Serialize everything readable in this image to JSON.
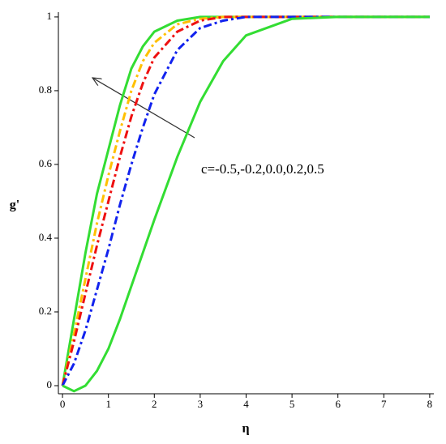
{
  "chart_data": {
    "type": "line",
    "x_label": "η",
    "y_label": "g'",
    "annotation": "c=-0.5,-0.2,0.0,0.2,0.5",
    "x": [
      0,
      0.25,
      0.5,
      0.75,
      1,
      1.25,
      1.5,
      1.75,
      2,
      2.5,
      3,
      3.5,
      4,
      5,
      6,
      7,
      8
    ],
    "series": [
      {
        "color": "#33dd33",
        "dash": "solid",
        "values": [
          0,
          0.18,
          0.36,
          0.52,
          0.64,
          0.76,
          0.86,
          0.92,
          0.96,
          0.99,
          1.0,
          1.0,
          1.0,
          1.0,
          1.0,
          1.0,
          1.0
        ]
      },
      {
        "color": "#ffc000",
        "dash": "dashdot",
        "values": [
          0,
          0.14,
          0.29,
          0.44,
          0.57,
          0.69,
          0.8,
          0.88,
          0.93,
          0.98,
          0.995,
          1.0,
          1.0,
          1.0,
          1.0,
          1.0,
          1.0
        ]
      },
      {
        "color": "#ee1111",
        "dash": "dashdot",
        "values": [
          0,
          0.12,
          0.25,
          0.38,
          0.5,
          0.62,
          0.73,
          0.82,
          0.89,
          0.96,
          0.99,
          1.0,
          1.0,
          1.0,
          1.0,
          1.0,
          1.0
        ]
      },
      {
        "color": "#1122ee",
        "dash": "dashdot",
        "values": [
          0,
          0.06,
          0.15,
          0.26,
          0.37,
          0.49,
          0.6,
          0.7,
          0.79,
          0.91,
          0.97,
          0.99,
          1.0,
          1.0,
          1.0,
          1.0,
          1.0
        ]
      },
      {
        "color": "#33dd33",
        "dash": "solid",
        "values": [
          0,
          -0.015,
          0.0,
          0.04,
          0.1,
          0.18,
          0.27,
          0.36,
          0.45,
          0.62,
          0.77,
          0.88,
          0.95,
          0.995,
          1.0,
          1.0,
          1.0
        ]
      }
    ],
    "xlim": [
      -0.09,
      8.09
    ],
    "ylim": [
      -0.022,
      1.013
    ],
    "xticks": [
      0,
      1,
      2,
      3,
      4,
      5,
      6,
      7,
      8
    ],
    "yticks": [
      0,
      0.2,
      0.4,
      0.6,
      0.8,
      1
    ]
  }
}
